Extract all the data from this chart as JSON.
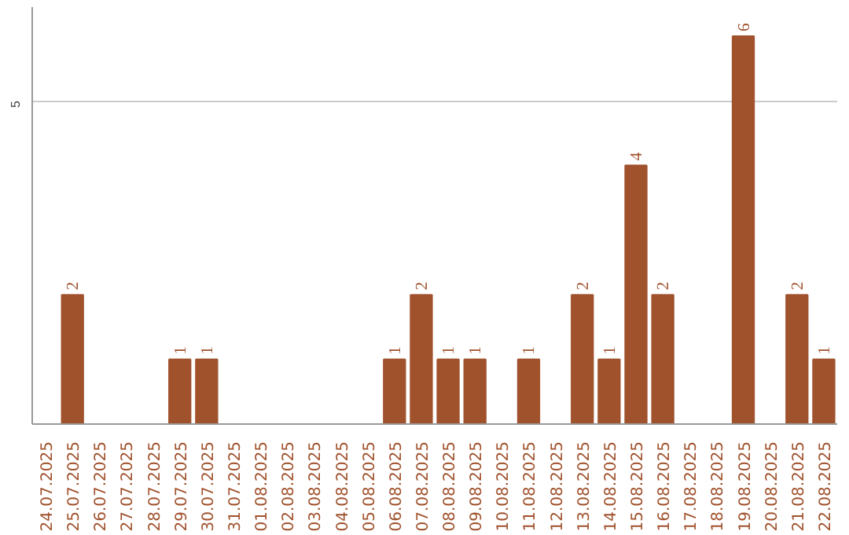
{
  "chart_data": {
    "type": "bar",
    "categories": [
      "24.07.2025",
      "25.07.2025",
      "26.07.2025",
      "27.07.2025",
      "28.07.2025",
      "29.07.2025",
      "30.07.2025",
      "31.07.2025",
      "01.08.2025",
      "02.08.2025",
      "03.08.2025",
      "04.08.2025",
      "05.08.2025",
      "06.08.2025",
      "07.08.2025",
      "08.08.2025",
      "09.08.2025",
      "10.08.2025",
      "11.08.2025",
      "12.08.2025",
      "13.08.2025",
      "14.08.2025",
      "15.08.2025",
      "16.08.2025",
      "17.08.2025",
      "18.08.2025",
      "19.08.2025",
      "20.08.2025",
      "21.08.2025",
      "22.08.2025"
    ],
    "values": [
      0,
      2,
      0,
      0,
      0,
      1,
      1,
      0,
      0,
      0,
      0,
      0,
      0,
      1,
      2,
      1,
      1,
      0,
      1,
      0,
      2,
      1,
      4,
      2,
      0,
      0,
      6,
      0,
      2,
      1
    ],
    "value_labels": [
      null,
      "2",
      null,
      null,
      null,
      "1",
      "1",
      null,
      null,
      null,
      null,
      null,
      null,
      "1",
      "2",
      "1",
      "1",
      null,
      "1",
      null,
      "2",
      "1",
      "4",
      "2",
      null,
      null,
      "6",
      null,
      "2",
      "1"
    ],
    "color": "#a0522d",
    "ylim": [
      0,
      6.45
    ],
    "yticks": [
      5
    ],
    "grid": "y"
  }
}
